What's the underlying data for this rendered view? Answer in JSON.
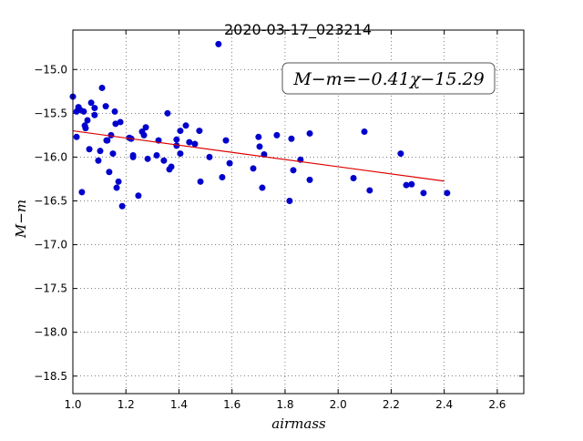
{
  "chart_data": {
    "type": "scatter",
    "title": "2020-03-17_023214",
    "xlabel": "airmass",
    "ylabel": "M−m",
    "annotation": "M−m=−0.41χ−15.29",
    "xlim": [
      1.0,
      2.7
    ],
    "ylim": [
      -18.7,
      -14.55
    ],
    "grid": true,
    "xticks": [
      {
        "value": 1.0,
        "label": "1.0"
      },
      {
        "value": 1.2,
        "label": "1.2"
      },
      {
        "value": 1.4,
        "label": "1.4"
      },
      {
        "value": 1.6,
        "label": "1.6"
      },
      {
        "value": 1.8,
        "label": "1.8"
      },
      {
        "value": 2.0,
        "label": "2.0"
      },
      {
        "value": 2.2,
        "label": "2.2"
      },
      {
        "value": 2.4,
        "label": "2.4"
      },
      {
        "value": 2.6,
        "label": "2.6"
      }
    ],
    "yticks": [
      {
        "value": -15.0,
        "label": "−15.0"
      },
      {
        "value": -15.5,
        "label": "−15.5"
      },
      {
        "value": -16.0,
        "label": "−16.0"
      },
      {
        "value": -16.5,
        "label": "−16.5"
      },
      {
        "value": -17.0,
        "label": "−17.0"
      },
      {
        "value": -17.5,
        "label": "−17.5"
      },
      {
        "value": -18.0,
        "label": "−18.0"
      },
      {
        "value": -18.5,
        "label": "−18.5"
      }
    ],
    "series": [
      {
        "color": "#0000cc",
        "x": [
          1.0,
          1.014,
          1.021,
          1.014,
          1.027,
          1.041,
          1.034,
          1.045,
          1.048,
          1.055,
          1.062,
          1.069,
          1.082,
          1.082,
          1.096,
          1.103,
          1.11,
          1.124,
          1.127,
          1.13,
          1.137,
          1.144,
          1.151,
          1.158,
          1.161,
          1.165,
          1.172,
          1.179,
          1.186,
          1.213,
          1.22,
          1.227,
          1.227,
          1.247,
          1.261,
          1.268,
          1.275,
          1.282,
          1.316,
          1.323,
          1.343,
          1.357,
          1.364,
          1.371,
          1.391,
          1.391,
          1.405,
          1.405,
          1.426,
          1.439,
          1.46,
          1.477,
          1.481,
          1.515,
          1.549,
          1.563,
          1.577,
          1.591,
          1.68,
          1.7,
          1.704,
          1.714,
          1.721,
          1.769,
          1.817,
          1.824,
          1.831,
          1.858,
          1.893,
          1.893,
          2.058,
          2.099,
          2.119,
          2.236,
          2.257,
          2.277,
          2.322,
          2.411
        ],
        "values": [
          -15.31,
          -15.48,
          -15.43,
          -15.77,
          -15.46,
          -15.48,
          -16.4,
          -15.64,
          -15.67,
          -15.58,
          -15.91,
          -15.38,
          -15.44,
          -15.52,
          -16.04,
          -15.93,
          -15.21,
          -15.42,
          -15.81,
          -15.81,
          -16.17,
          -15.75,
          -15.96,
          -15.48,
          -15.62,
          -16.35,
          -16.28,
          -15.6,
          -16.56,
          -15.78,
          -15.79,
          -15.98,
          -16.0,
          -16.44,
          -15.71,
          -15.75,
          -15.66,
          -16.02,
          -15.98,
          -15.81,
          -16.04,
          -15.5,
          -16.14,
          -16.11,
          -15.87,
          -15.8,
          -15.96,
          -15.7,
          -15.64,
          -15.83,
          -15.85,
          -15.7,
          -16.28,
          -16.0,
          -14.71,
          -16.23,
          -15.81,
          -16.07,
          -16.13,
          -15.77,
          -15.88,
          -16.35,
          -15.97,
          -15.75,
          -16.5,
          -15.79,
          -16.15,
          -16.03,
          -15.73,
          -16.26,
          -16.24,
          -15.71,
          -16.38,
          -15.96,
          -16.32,
          -16.31,
          -16.41,
          -16.41
        ]
      }
    ],
    "fit": {
      "color": "#dd0000",
      "x": [
        1.0,
        2.4
      ],
      "values": [
        -15.7,
        -16.274
      ]
    }
  }
}
